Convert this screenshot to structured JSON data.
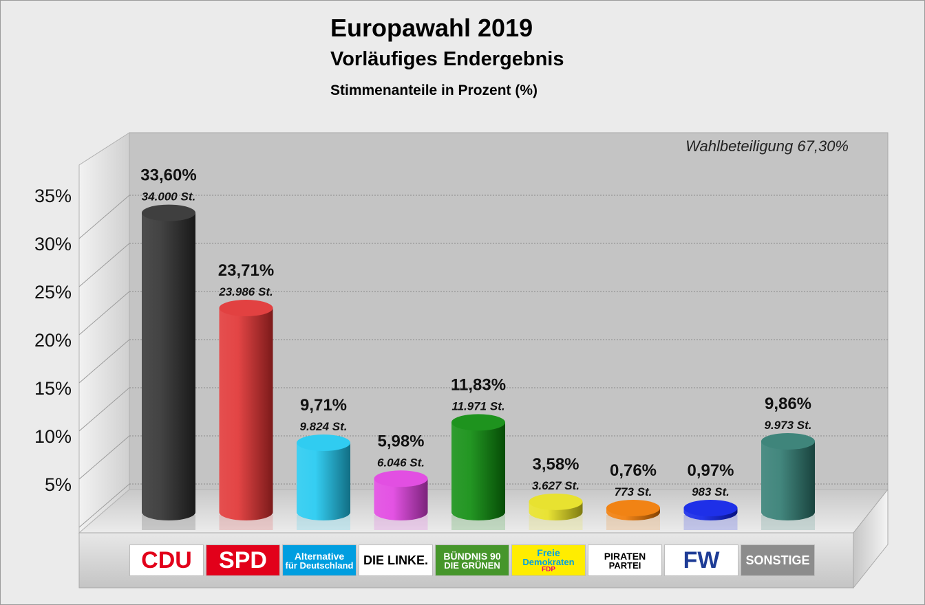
{
  "header": {
    "title": "Europawahl 2019",
    "subtitle": "Vorläufiges Endergebnis",
    "subtitle2": "Stimmenanteile in Prozent (%)"
  },
  "chart_data": {
    "type": "bar",
    "title": "Europawahl 2019",
    "annotation": "Wahlbeteiligung 67,30%",
    "categories": [
      "CDU",
      "SPD",
      "AfD",
      "DIE LINKE.",
      "BÜNDNIS 90 DIE GRÜNEN",
      "FDP",
      "PIRATEN PARTEI",
      "FW",
      "SONSTIGE"
    ],
    "values": [
      33.6,
      23.71,
      9.71,
      5.98,
      11.83,
      3.58,
      0.76,
      0.97,
      9.86
    ],
    "value_labels": [
      "33,60%",
      "23,71%",
      "9,71%",
      "5,98%",
      "11,83%",
      "3,58%",
      "0,76%",
      "0,97%",
      "9,86%"
    ],
    "votes": [
      "34.000 St.",
      "23.986 St.",
      "9.824 St.",
      "6.046 St.",
      "11.971 St.",
      "3.627 St.",
      "773 St.",
      "983 St.",
      "9.973 St."
    ],
    "colors": [
      "#2e2e2e",
      "#e03030",
      "#1ec8f0",
      "#e040e0",
      "#0a8a0a",
      "#e6e01e",
      "#f07800",
      "#0a1ee6",
      "#2e7a70"
    ],
    "yticks": [
      "5%",
      "10%",
      "15%",
      "20%",
      "25%",
      "30%",
      "35%"
    ],
    "ytick_values": [
      5,
      10,
      15,
      20,
      25,
      30,
      35
    ],
    "ylim": [
      0,
      35
    ],
    "grid": true,
    "legend": "none"
  },
  "logos": [
    {
      "text": "CDU",
      "bg": "#ffffff",
      "fg": "#e2001a"
    },
    {
      "text": "SPD",
      "bg": "#e2001a",
      "fg": "#ffffff"
    },
    {
      "text": "Alternative",
      "text2": "für Deutschland",
      "bg": "#009ee0",
      "fg": "#ffffff"
    },
    {
      "text": "DIE LINKE.",
      "bg": "#ffffff",
      "fg": "#000000"
    },
    {
      "text": "BÜNDNIS 90",
      "text2": "DIE GRÜNEN",
      "bg": "#46962b",
      "fg": "#ffffff"
    },
    {
      "text": "Freie",
      "text2": "Demokraten",
      "text3": "FDP",
      "bg": "#ffed00",
      "fg": "#00a0e0"
    },
    {
      "text": "PIRATEN",
      "text2": "PARTEI",
      "bg": "#ffffff",
      "fg": "#000000"
    },
    {
      "text": "FW",
      "bg": "#ffffff",
      "fg": "#1e3c96"
    },
    {
      "text": "SONSTIGE",
      "bg": "#8c8c8c",
      "fg": "#ffffff"
    }
  ]
}
